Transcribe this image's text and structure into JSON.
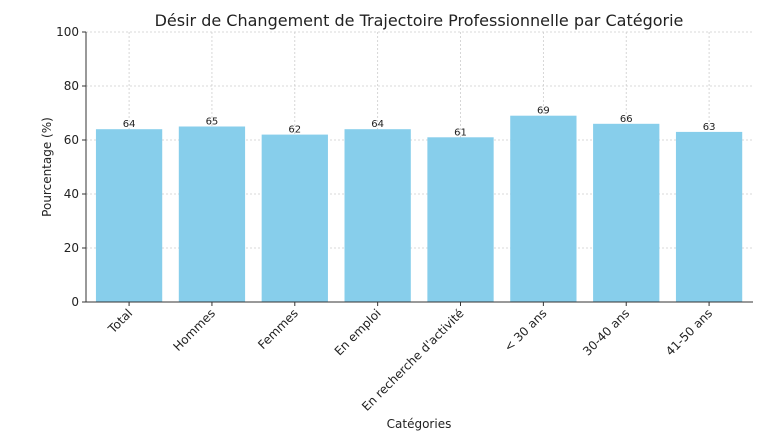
{
  "chart_data": {
    "type": "bar",
    "title": "Désir de Changement de Trajectoire Professionnelle par Catégorie",
    "xlabel": "Catégories",
    "ylabel": "Pourcentage (%)",
    "ylim": [
      0,
      100
    ],
    "yticks": [
      0,
      20,
      40,
      60,
      80,
      100
    ],
    "categories": [
      "Total",
      "Hommes",
      "Femmes",
      "En emploi",
      "En recherche d'activité",
      "< 30 ans",
      "30-40 ans",
      "41-50 ans"
    ],
    "values": [
      64,
      65,
      62,
      64,
      61,
      69,
      66,
      63
    ],
    "grid": true,
    "bar_color": "#87CEEB"
  }
}
